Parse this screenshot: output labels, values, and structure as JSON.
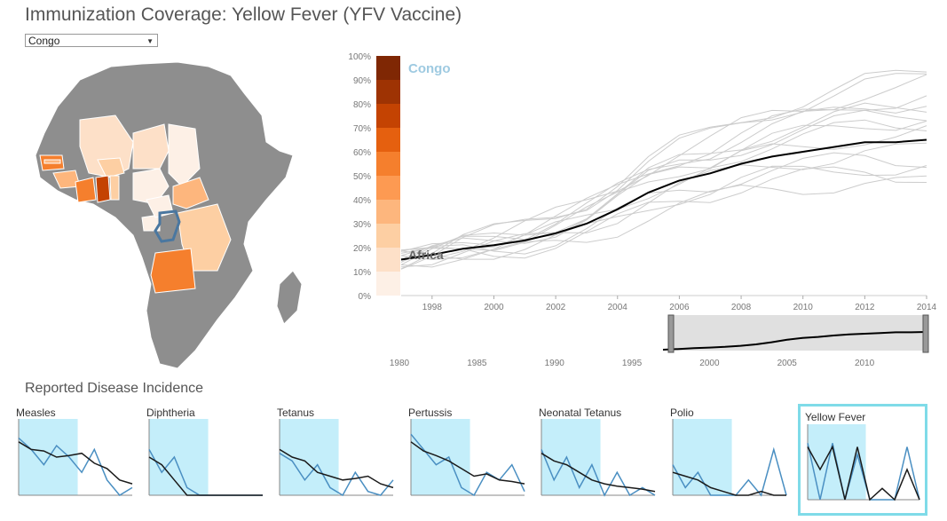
{
  "title": "Immunization Coverage: Yellow Fever (YFV Vaccine)",
  "country_select": {
    "value": "Congo"
  },
  "colors": {
    "accent": "#9ecae1",
    "highlight_country": "#4a77a0",
    "scale": [
      "#fdf0e6",
      "#fde0c8",
      "#fdcfa3",
      "#fdb67d",
      "#fd9a52",
      "#f57f2d",
      "#e5600f",
      "#c44302",
      "#9e3303",
      "#7f2704"
    ],
    "incidence_window": "#c4eefa"
  },
  "main_chart": {
    "highlight_label": "Congo",
    "baseline_label": "Africa",
    "y_ticks": [
      "0%",
      "10%",
      "20%",
      "30%",
      "40%",
      "50%",
      "60%",
      "70%",
      "80%",
      "90%",
      "100%"
    ],
    "x_ticks": [
      "1998",
      "2000",
      "2002",
      "2004",
      "2006",
      "2008",
      "2010",
      "2012",
      "2014"
    ],
    "brush_ticks": [
      "1980",
      "1985",
      "1990",
      "1995",
      "2000",
      "2005",
      "2010"
    ]
  },
  "chart_data": {
    "type": "line",
    "x": [
      1997,
      1998,
      1999,
      2000,
      2001,
      2002,
      2003,
      2004,
      2005,
      2006,
      2007,
      2008,
      2009,
      2010,
      2011,
      2012,
      2013,
      2014
    ],
    "series": [
      {
        "name": "Africa",
        "values": [
          15,
          17,
          19.5,
          21,
          23,
          26,
          30,
          36,
          43,
          48,
          51,
          55,
          58,
          60,
          62,
          64,
          64,
          65
        ]
      }
    ],
    "ylim": [
      0,
      100
    ],
    "xlim": [
      1997,
      2014
    ],
    "brush_xlim": [
      1980,
      2014
    ],
    "brush_selection": [
      1997,
      2014
    ]
  },
  "incidence": {
    "title": "Reported Disease Incidence",
    "panels": [
      {
        "label": "Measles",
        "values": [
          70,
          60,
          58,
          50,
          52,
          55,
          42,
          35,
          20,
          15
        ],
        "congo": [
          75,
          60,
          40,
          65,
          50,
          30,
          60,
          20,
          0,
          10
        ]
      },
      {
        "label": "Diphtheria",
        "values": [
          50,
          40,
          20,
          0,
          0,
          0,
          0,
          0,
          0,
          0
        ],
        "congo": [
          60,
          30,
          50,
          10,
          0,
          0,
          0,
          0,
          0,
          0
        ]
      },
      {
        "label": "Tetanus",
        "values": [
          60,
          50,
          45,
          30,
          25,
          20,
          22,
          25,
          15,
          10
        ],
        "congo": [
          55,
          45,
          20,
          40,
          10,
          0,
          30,
          5,
          0,
          20
        ]
      },
      {
        "label": "Pertussis",
        "values": [
          70,
          58,
          52,
          45,
          35,
          25,
          28,
          20,
          18,
          15
        ],
        "congo": [
          80,
          60,
          40,
          50,
          10,
          0,
          30,
          20,
          40,
          5
        ]
      },
      {
        "label": "Neonatal Tetanus",
        "values": [
          55,
          45,
          40,
          30,
          20,
          15,
          12,
          10,
          8,
          5
        ],
        "congo": [
          60,
          20,
          50,
          10,
          40,
          0,
          30,
          0,
          10,
          0
        ]
      },
      {
        "label": "Polio",
        "values": [
          30,
          25,
          20,
          10,
          5,
          0,
          0,
          5,
          0,
          0
        ],
        "congo": [
          40,
          10,
          30,
          0,
          0,
          0,
          20,
          0,
          60,
          0
        ]
      },
      {
        "label": "Yellow Fever",
        "values": [
          70,
          40,
          70,
          0,
          70,
          0,
          15,
          0,
          40,
          0
        ],
        "congo": [
          75,
          0,
          75,
          0,
          60,
          0,
          0,
          0,
          70,
          0
        ],
        "active": true
      }
    ]
  }
}
